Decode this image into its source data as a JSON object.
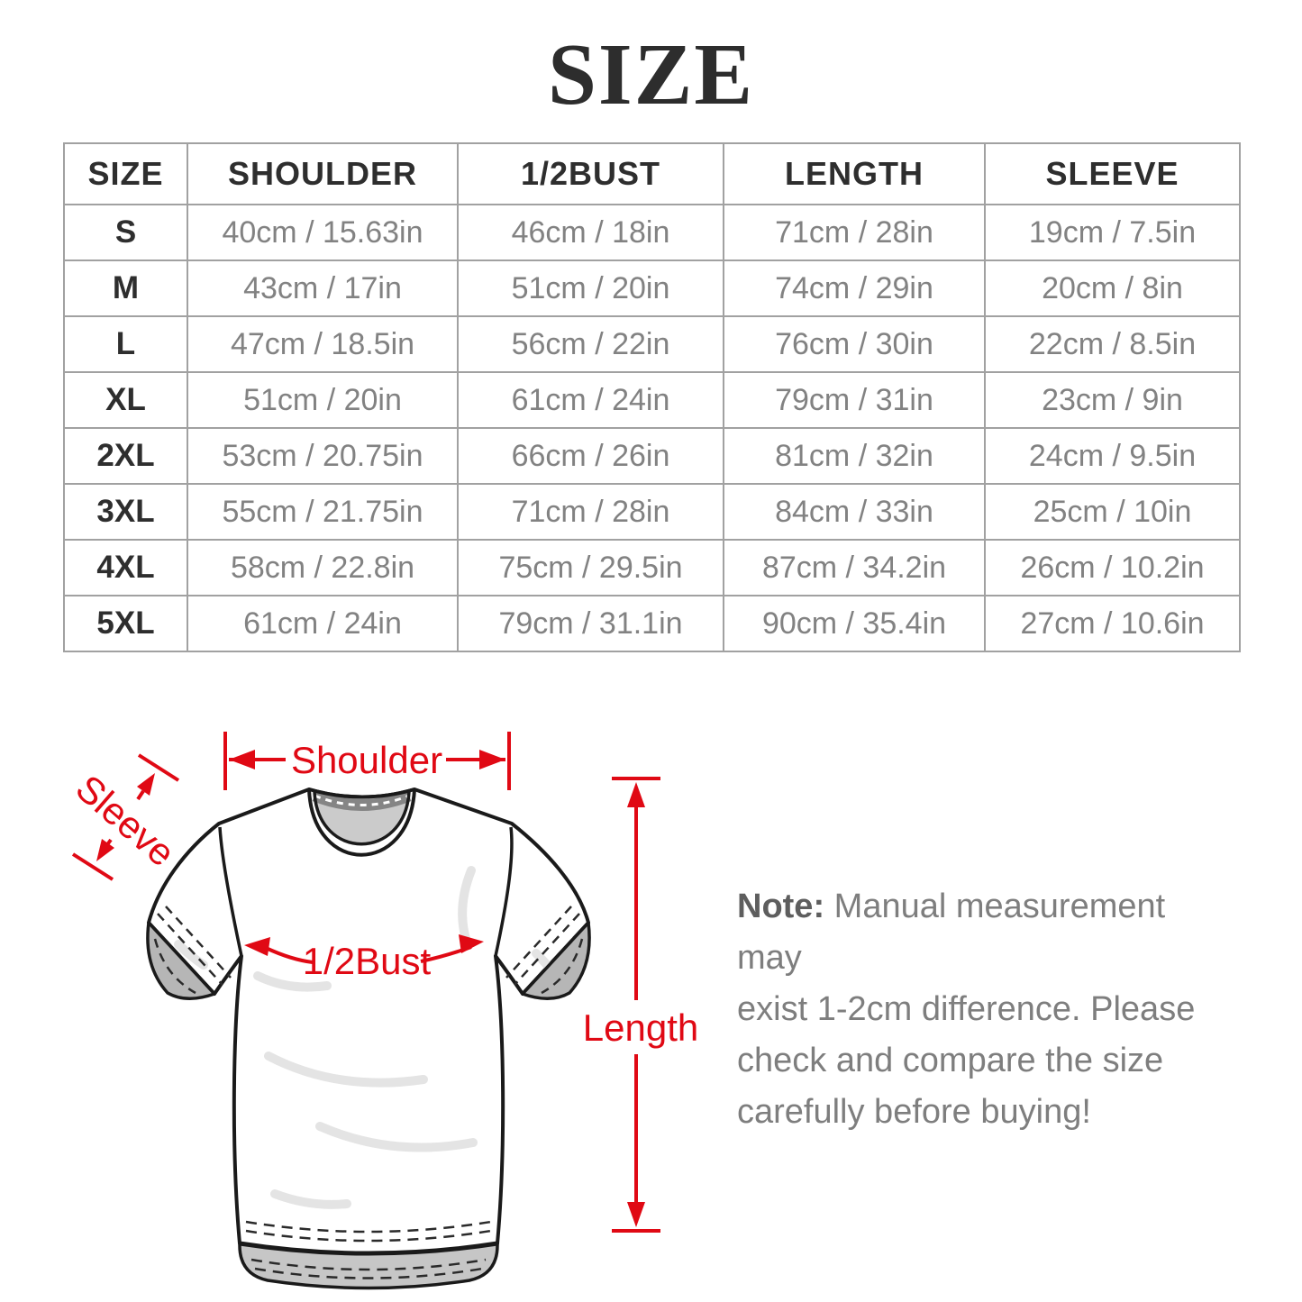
{
  "page": {
    "title": "SIZE",
    "background": "#ffffff"
  },
  "colors": {
    "annotation_red": "#e00914",
    "table_border": "#a1a1a1",
    "header_text": "#2e2e2e",
    "cell_text": "#828282",
    "note_text": "#7e7e7e"
  },
  "chart_data": {
    "type": "table",
    "title": "SIZE",
    "headers": [
      "SIZE",
      "SHOULDER",
      "1/2BUST",
      "LENGTH",
      "SLEEVE"
    ],
    "rows": [
      [
        "S",
        "40cm / 15.63in",
        "46cm / 18in",
        "71cm / 28in",
        "19cm / 7.5in"
      ],
      [
        "M",
        "43cm / 17in",
        "51cm / 20in",
        "74cm / 29in",
        "20cm / 8in"
      ],
      [
        "L",
        "47cm / 18.5in",
        "56cm / 22in",
        "76cm / 30in",
        "22cm / 8.5in"
      ],
      [
        "XL",
        "51cm / 20in",
        "61cm / 24in",
        "79cm / 31in",
        "23cm / 9in"
      ],
      [
        "2XL",
        "53cm / 20.75in",
        "66cm / 26in",
        "81cm / 32in",
        "24cm / 9.5in"
      ],
      [
        "3XL",
        "55cm / 21.75in",
        "71cm / 28in",
        "84cm / 33in",
        "25cm / 10in"
      ],
      [
        "4XL",
        "58cm / 22.8in",
        "75cm / 29.5in",
        "87cm / 34.2in",
        "26cm / 10.2in"
      ],
      [
        "5XL",
        "61cm / 24in",
        "79cm / 31.1in",
        "90cm / 35.4in",
        "27cm / 10.6in"
      ]
    ]
  },
  "diagram": {
    "labels": {
      "shoulder": "Shoulder",
      "sleeve": "Sleeve",
      "half_bust": "1/2Bust",
      "length": "Length"
    }
  },
  "note": {
    "bold": "Note:",
    "lines": [
      " Manual measurement may",
      "exist 1-2cm difference. Please",
      "check and compare the size",
      "carefully before buying!"
    ]
  }
}
